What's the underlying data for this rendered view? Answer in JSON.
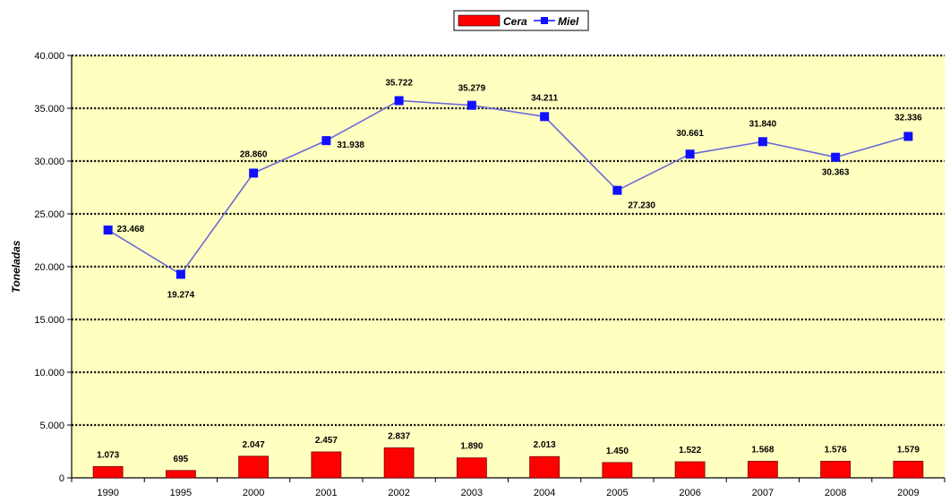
{
  "chart_data": {
    "type": "bar",
    "categories": [
      "1990",
      "1995",
      "2000",
      "2001",
      "2002",
      "2003",
      "2004",
      "2005",
      "2006",
      "2007",
      "2008",
      "2009"
    ],
    "series": [
      {
        "name": "Cera",
        "type": "bar",
        "color": "#ff0000",
        "values": [
          1073,
          695,
          2047,
          2457,
          2837,
          1890,
          2013,
          1450,
          1522,
          1568,
          1576,
          1579
        ],
        "labels": [
          "1.073",
          "695",
          "2.047",
          "2.457",
          "2.837",
          "1.890",
          "2.013",
          "1.450",
          "1.522",
          "1.568",
          "1.576",
          "1.579"
        ]
      },
      {
        "name": "Miel",
        "type": "line",
        "color": "#0000ff",
        "values": [
          23468,
          19274,
          28860,
          31938,
          35722,
          35279,
          34211,
          27230,
          30661,
          31840,
          30363,
          32336
        ],
        "labels": [
          "23.468",
          "19.274",
          "28.860",
          "31.938",
          "35.722",
          "35.279",
          "34.211",
          "27.230",
          "30.661",
          "31.840",
          "30.363",
          "32.336"
        ]
      }
    ],
    "ylabel": "Toneladas",
    "xlabel": "",
    "ylim": [
      0,
      40000
    ],
    "yticks": [
      0,
      5000,
      10000,
      15000,
      20000,
      25000,
      30000,
      35000,
      40000
    ],
    "ytick_labels": [
      "0",
      "5.000",
      "10.000",
      "15.000",
      "20.000",
      "25.000",
      "30.000",
      "35.000",
      "40.000"
    ],
    "grid": true,
    "legend_position": "top-center",
    "plot_background": "#ffffc0"
  }
}
